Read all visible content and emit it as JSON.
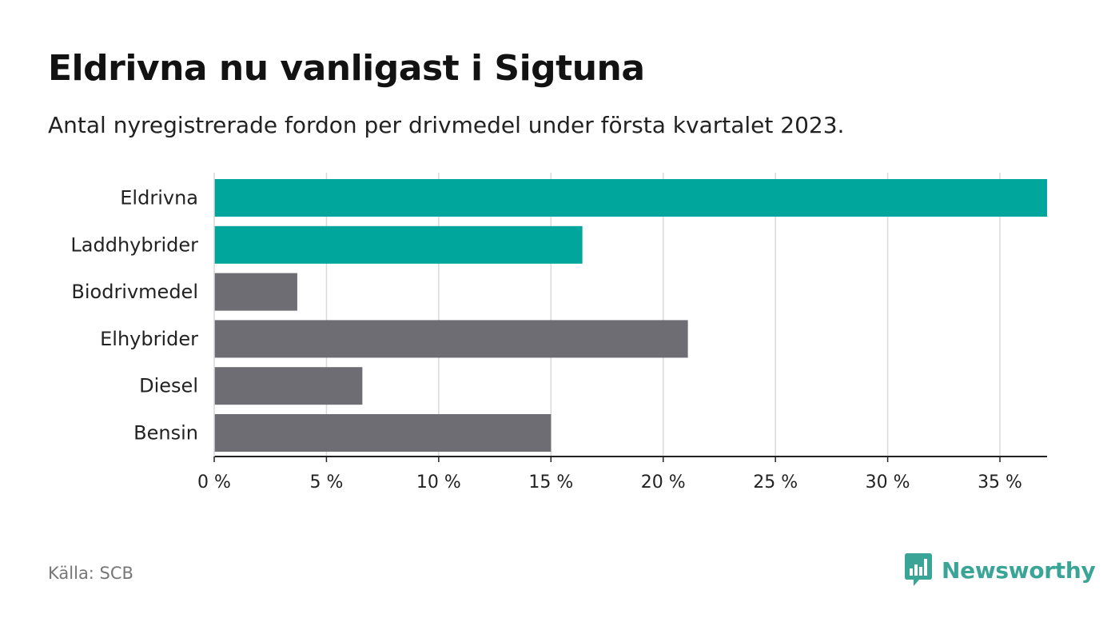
{
  "header": {
    "title": "Eldrivna nu vanligast i Sigtuna",
    "subtitle": "Antal nyregistrerade fordon per drivmedel under första kvartalet 2023."
  },
  "footer": {
    "source": "Källa: SCB",
    "brand": "Newsworthy",
    "brand_icon": "bar-chart-speech-bubble-icon"
  },
  "colors": {
    "highlight": "#00a59b",
    "default": "#6e6d73",
    "grid": "#d9d9d9",
    "axis": "#222222",
    "brand": "#3aa596"
  },
  "chart_data": {
    "type": "bar",
    "orientation": "horizontal",
    "title": "Eldrivna nu vanligast i Sigtuna",
    "subtitle": "Antal nyregistrerade fordon per drivmedel under första kvartalet 2023.",
    "xlabel": "",
    "ylabel": "",
    "unit": "%",
    "categories": [
      "Eldrivna",
      "Laddhybrider",
      "Biodrivmedel",
      "Elhybrider",
      "Diesel",
      "Bensin"
    ],
    "values": [
      37.1,
      16.4,
      3.7,
      21.1,
      6.6,
      15.0
    ],
    "highlighted": [
      true,
      true,
      false,
      false,
      false,
      false
    ],
    "xlim": [
      0,
      37.1
    ],
    "xticks": [
      0,
      5,
      10,
      15,
      20,
      25,
      30,
      35
    ],
    "xtick_labels": [
      "0 %",
      "5 %",
      "10 %",
      "15 %",
      "20 %",
      "25 %",
      "30 %",
      "35 %"
    ],
    "grid": true
  }
}
